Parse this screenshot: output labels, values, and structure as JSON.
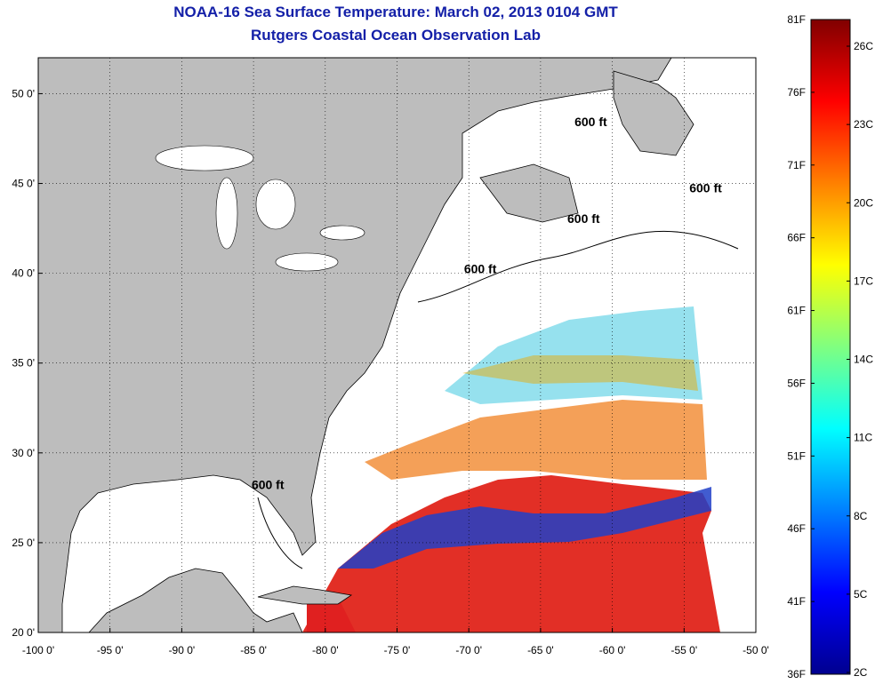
{
  "title": "NOAA-16 Sea Surface Temperature:  March 02, 2013 0104 GMT",
  "subtitle": "Rutgers Coastal Ocean Observation Lab",
  "map": {
    "lon_range": [
      -100,
      -50
    ],
    "lat_range": [
      20,
      52
    ],
    "lon_ticks": [
      -100,
      -95,
      -90,
      -85,
      -80,
      -75,
      -70,
      -65,
      -60,
      -55,
      -50
    ],
    "lat_ticks": [
      20,
      25,
      30,
      35,
      40,
      45,
      50
    ],
    "lon_tick_labels": [
      "-100 0'",
      "-95 0'",
      "-90 0'",
      "-85 0'",
      "-80 0'",
      "-75 0'",
      "-70 0'",
      "-65 0'",
      "-60 0'",
      "-55 0'",
      "-50 0'"
    ],
    "lat_tick_labels": [
      "20 0'",
      "25 0'",
      "30 0'",
      "35 0'",
      "40 0'",
      "45 0'",
      "50 0'"
    ],
    "grid": true,
    "land_color": "#bdbdbd",
    "isobath_labels": [
      {
        "text": "600 ft",
        "lon": -61.5,
        "lat": 48.2
      },
      {
        "text": "600 ft",
        "lon": -53.5,
        "lat": 44.5
      },
      {
        "text": "600 ft",
        "lon": -62.0,
        "lat": 42.8
      },
      {
        "text": "600 ft",
        "lon": -69.2,
        "lat": 40.0
      },
      {
        "text": "600 ft",
        "lon": -84.0,
        "lat": 28.0
      }
    ]
  },
  "colorbar": {
    "left_labels": [
      "81F",
      "76F",
      "71F",
      "66F",
      "61F",
      "56F",
      "51F",
      "46F",
      "41F",
      "36F"
    ],
    "right_labels": [
      "26C",
      "23C",
      "20C",
      "17C",
      "14C",
      "11C",
      "8C",
      "5C",
      "2C"
    ],
    "colors": [
      "#00008f",
      "#0000ff",
      "#0080ff",
      "#00ffff",
      "#80ff80",
      "#ffff00",
      "#ff8000",
      "#ff0000",
      "#800000"
    ]
  }
}
